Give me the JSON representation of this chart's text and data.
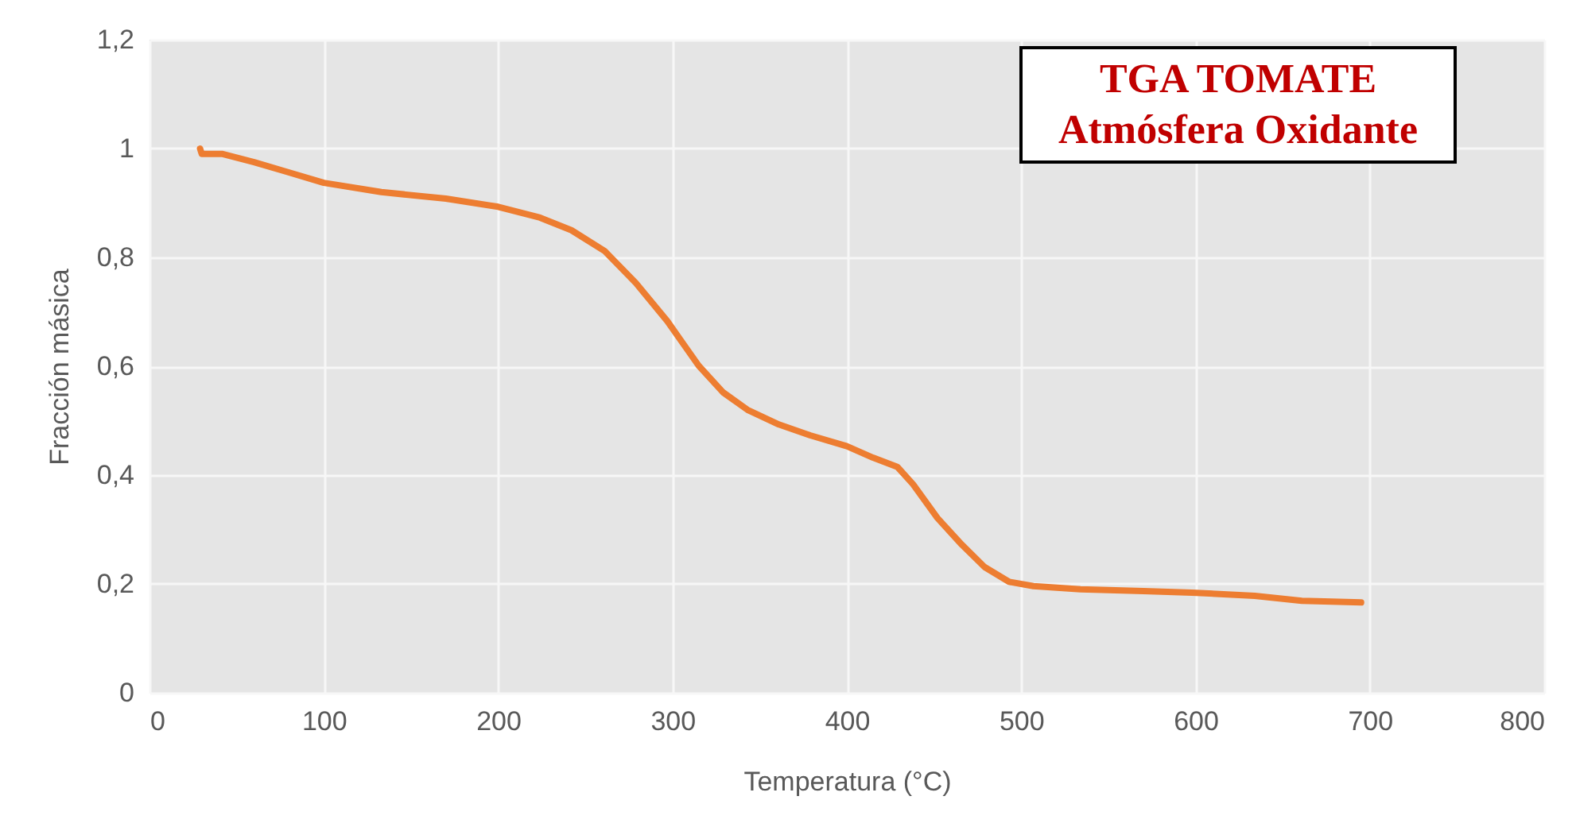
{
  "chart_data": {
    "type": "line",
    "title": "TGA TOMATE",
    "subtitle": "Atmósfera Oxidante",
    "xlabel": "Temperatura (°C)",
    "ylabel": "Fracción másica",
    "x": [
      29,
      30,
      42,
      60,
      78,
      100,
      133,
      170,
      200,
      224,
      242,
      261,
      279,
      297,
      306,
      315,
      329,
      343,
      361,
      379,
      400,
      415,
      429,
      438,
      452,
      466,
      479,
      493,
      507,
      534,
      570,
      598,
      634,
      661,
      695
    ],
    "series": [
      {
        "color": "#ed7d31",
        "values": [
          1.0,
          0.99,
          0.99,
          0.975,
          0.958,
          0.937,
          0.92,
          0.908,
          0.893,
          0.873,
          0.85,
          0.812,
          0.753,
          0.683,
          0.642,
          0.601,
          0.552,
          0.52,
          0.493,
          0.473,
          0.453,
          0.432,
          0.415,
          0.383,
          0.321,
          0.272,
          0.231,
          0.204,
          0.196,
          0.19,
          0.187,
          0.184,
          0.178,
          0.169,
          0.166
        ]
      }
    ],
    "xlim": [
      0,
      800
    ],
    "xticks": [
      0,
      100,
      200,
      300,
      400,
      500,
      600,
      700,
      800
    ],
    "ylim": [
      0,
      1.2
    ],
    "yticks": [
      0,
      {
        "value": 0.2,
        "label": "0,2"
      },
      {
        "value": 0.4,
        "label": "0,4"
      },
      {
        "value": 0.6,
        "label": "0,6"
      },
      {
        "value": 0.8,
        "label": "0,8"
      },
      1,
      {
        "value": 1.2,
        "label": "1,2"
      }
    ],
    "grid": true,
    "marker": "none",
    "line_style": "solid"
  }
}
